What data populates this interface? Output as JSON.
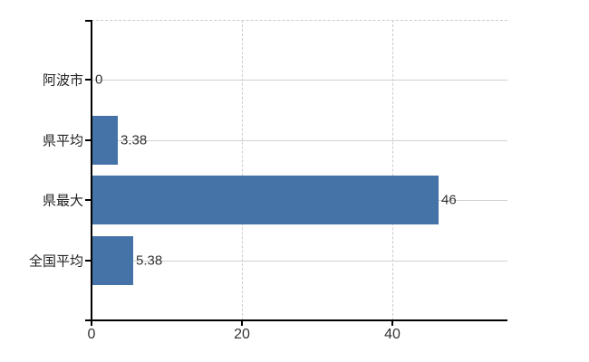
{
  "chart_data": {
    "type": "bar",
    "orientation": "horizontal",
    "title": "",
    "xlabel": "",
    "ylabel": "",
    "categories": [
      "阿波市",
      "県平均",
      "県最大",
      "全国平均"
    ],
    "values": [
      0,
      3.38,
      46,
      5.38
    ],
    "value_labels": [
      "0",
      "3.38",
      "46",
      "5.38"
    ],
    "x_ticks": [
      0,
      20,
      40
    ],
    "x_tick_labels": [
      "0",
      "20",
      "40"
    ],
    "xlim": [
      0,
      55.3
    ],
    "grid": true,
    "legend": false,
    "colors": {
      "bar": "#4572a7",
      "axis": "#000000",
      "vertical_grid": "#cccccc",
      "category_grid": "#ccd4cc",
      "text": "#333333"
    }
  }
}
